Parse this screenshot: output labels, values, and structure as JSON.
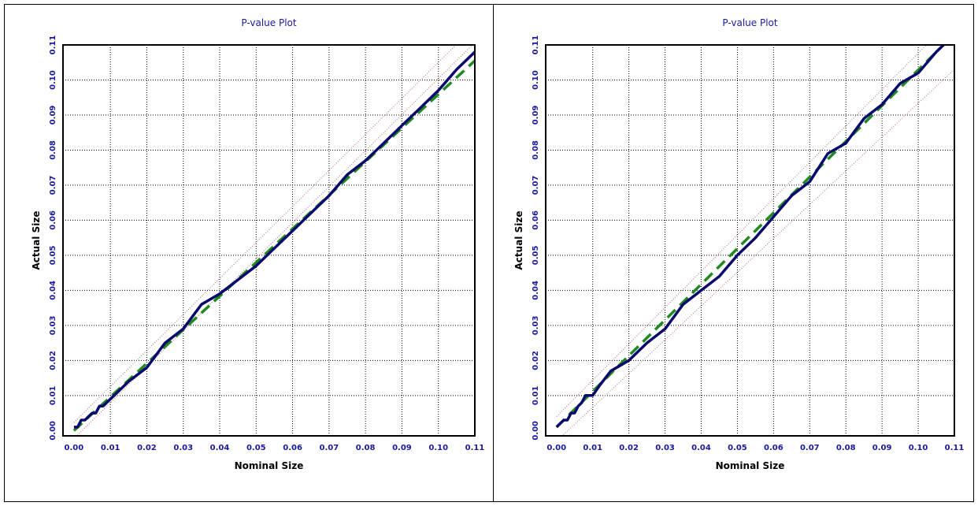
{
  "colors": {
    "frame": "#000000",
    "grid": "#000000",
    "title": "#1a1a9e",
    "tick_labels": "#1a1a9e",
    "series_actual": "#0a0a6e",
    "series_dashed": "#1f8a1f",
    "bounds": "#c07070"
  },
  "chart_data": [
    {
      "type": "line",
      "title": "P-value Plot",
      "xlabel": "Nominal Size",
      "ylabel": "Actual Size",
      "xlim": [
        -0.003,
        0.11
      ],
      "ylim": [
        -0.0015,
        0.11
      ],
      "xticks": [
        "0.00",
        "0.01",
        "0.02",
        "0.03",
        "0.04",
        "0.05",
        "0.06",
        "0.07",
        "0.08",
        "0.09",
        "0.10",
        "0.11"
      ],
      "yticks": [
        "0.00",
        "0.01",
        "0.02",
        "0.03",
        "0.04",
        "0.05",
        "0.06",
        "0.07",
        "0.08",
        "0.09",
        "0.10",
        "0.11"
      ],
      "grid": true,
      "series": [
        {
          "style": "solid",
          "x": [
            0.0,
            0.001,
            0.002,
            0.003,
            0.004,
            0.005,
            0.006,
            0.007,
            0.008,
            0.01,
            0.015,
            0.02,
            0.025,
            0.03,
            0.035,
            0.04,
            0.045,
            0.05,
            0.055,
            0.06,
            0.065,
            0.07,
            0.075,
            0.08,
            0.085,
            0.09,
            0.095,
            0.1,
            0.105,
            0.11
          ],
          "y": [
            0.001,
            0.001,
            0.003,
            0.003,
            0.004,
            0.005,
            0.005,
            0.007,
            0.007,
            0.009,
            0.014,
            0.018,
            0.025,
            0.029,
            0.036,
            0.039,
            0.043,
            0.047,
            0.052,
            0.057,
            0.062,
            0.067,
            0.073,
            0.077,
            0.082,
            0.087,
            0.092,
            0.097,
            0.103,
            0.108
          ]
        },
        {
          "style": "dashed",
          "x": [
            0.0,
            0.11
          ],
          "y": [
            0.0,
            0.1055
          ]
        },
        {
          "style": "dotted",
          "x": [
            0.0,
            0.11
          ],
          "y": [
            0.0023,
            0.1153
          ]
        },
        {
          "style": "dotted",
          "x": [
            0.0,
            0.11
          ],
          "y": [
            -0.0023,
            0.1107
          ]
        }
      ]
    },
    {
      "type": "line",
      "title": "P-value Plot",
      "xlabel": "Nominal Size",
      "ylabel": "Actual Size",
      "xlim": [
        -0.003,
        0.11
      ],
      "ylim": [
        -0.0015,
        0.11
      ],
      "xticks": [
        "0.00",
        "0.01",
        "0.02",
        "0.03",
        "0.04",
        "0.05",
        "0.06",
        "0.07",
        "0.08",
        "0.09",
        "0.10",
        "0.11"
      ],
      "yticks": [
        "0.00",
        "0.01",
        "0.02",
        "0.03",
        "0.04",
        "0.05",
        "0.06",
        "0.07",
        "0.08",
        "0.09",
        "0.10",
        "0.11"
      ],
      "grid": true,
      "series": [
        {
          "style": "solid",
          "x": [
            0.0,
            0.001,
            0.002,
            0.003,
            0.004,
            0.005,
            0.006,
            0.007,
            0.008,
            0.009,
            0.01,
            0.012,
            0.015,
            0.02,
            0.025,
            0.03,
            0.035,
            0.04,
            0.045,
            0.05,
            0.055,
            0.06,
            0.065,
            0.07,
            0.075,
            0.08,
            0.085,
            0.09,
            0.095,
            0.1,
            0.105,
            0.107
          ],
          "y": [
            0.001,
            0.002,
            0.003,
            0.003,
            0.005,
            0.005,
            0.007,
            0.008,
            0.01,
            0.01,
            0.01,
            0.013,
            0.017,
            0.02,
            0.025,
            0.029,
            0.036,
            0.04,
            0.044,
            0.05,
            0.055,
            0.061,
            0.067,
            0.071,
            0.079,
            0.082,
            0.089,
            0.093,
            0.099,
            0.102,
            0.108,
            0.11
          ]
        },
        {
          "style": "dashed",
          "x": [
            0.0,
            0.107
          ],
          "y": [
            0.001,
            0.11
          ]
        },
        {
          "style": "dotted",
          "x": [
            0.0,
            0.11
          ],
          "y": [
            0.004,
            0.118
          ]
        },
        {
          "style": "dotted",
          "x": [
            0.0,
            0.11
          ],
          "y": [
            -0.003,
            0.103
          ]
        }
      ]
    }
  ]
}
